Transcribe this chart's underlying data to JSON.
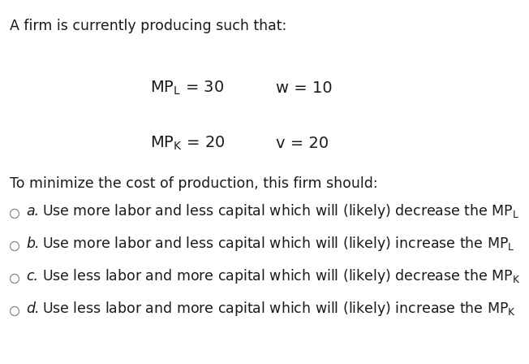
{
  "bg_color": "#ffffff",
  "title_line": "A firm is currently producing such that:",
  "question": "To minimize the cost of production, this firm should:",
  "options": [
    {
      "letter": "a.",
      "text": "Use more labor and less capital which will (likely) decrease the $\\mathregular{MP_L}$"
    },
    {
      "letter": "b.",
      "text": "Use more labor and less capital which will (likely) increase the $\\mathregular{MP_L}$"
    },
    {
      "letter": "c.",
      "text": "Use less labor and more capital which will (likely) decrease the $\\mathregular{MP_K}$"
    },
    {
      "letter": "d.",
      "text": "Use less labor and more capital which will (likely) increase the $\\mathregular{MP_K}$"
    }
  ],
  "text_color": "#1a1a1a",
  "eq_color": "#1a1a1a",
  "circle_color": "#888888"
}
